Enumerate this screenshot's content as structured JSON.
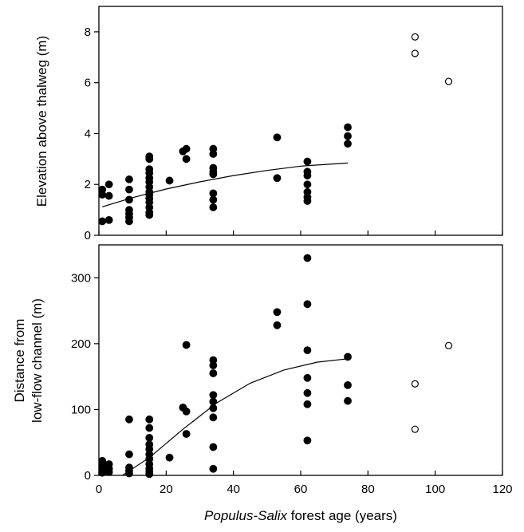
{
  "chart_data": [
    {
      "type": "scatter",
      "ylabel": "Elevation above thalweg (m)",
      "xlim": [
        0,
        120
      ],
      "ylim": [
        0,
        9
      ],
      "xticks": [
        0,
        20,
        40,
        60,
        80,
        100,
        120
      ],
      "yticks": [
        0,
        2,
        4,
        6,
        8
      ],
      "series": [
        {
          "marker": "filled-circle",
          "points": [
            [
              1,
              1.8
            ],
            [
              1,
              1.6
            ],
            [
              1,
              0.55
            ],
            [
              3,
              2.0
            ],
            [
              3,
              1.55
            ],
            [
              3,
              0.6
            ],
            [
              9,
              2.2
            ],
            [
              9,
              1.8
            ],
            [
              9,
              1.4
            ],
            [
              9,
              1.0
            ],
            [
              9,
              0.85
            ],
            [
              9,
              0.7
            ],
            [
              9,
              0.55
            ],
            [
              15,
              3.1
            ],
            [
              15,
              3.0
            ],
            [
              15,
              2.6
            ],
            [
              15,
              2.45
            ],
            [
              15,
              2.25
            ],
            [
              15,
              2.1
            ],
            [
              15,
              1.9
            ],
            [
              15,
              1.7
            ],
            [
              15,
              1.6
            ],
            [
              15,
              1.45
            ],
            [
              15,
              1.3
            ],
            [
              15,
              1.1
            ],
            [
              15,
              0.9
            ],
            [
              15,
              0.8
            ],
            [
              21,
              2.15
            ],
            [
              25,
              3.3
            ],
            [
              26,
              3.4
            ],
            [
              26,
              3.0
            ],
            [
              34,
              3.4
            ],
            [
              34,
              3.2
            ],
            [
              34,
              2.65
            ],
            [
              34,
              2.5
            ],
            [
              34,
              2.4
            ],
            [
              34,
              1.65
            ],
            [
              34,
              1.4
            ],
            [
              34,
              1.1
            ],
            [
              53,
              3.85
            ],
            [
              53,
              2.25
            ],
            [
              62,
              2.9
            ],
            [
              62,
              2.5
            ],
            [
              62,
              2.35
            ],
            [
              62,
              2.0
            ],
            [
              62,
              1.7
            ],
            [
              62,
              1.5
            ],
            [
              62,
              1.35
            ],
            [
              74,
              4.25
            ],
            [
              74,
              3.9
            ],
            [
              74,
              3.6
            ]
          ]
        },
        {
          "marker": "open-circle",
          "points": [
            [
              94,
              7.8
            ],
            [
              94,
              7.15
            ],
            [
              104,
              6.05
            ]
          ]
        }
      ],
      "fit_curve": {
        "points": [
          [
            1,
            1.12
          ],
          [
            10,
            1.48
          ],
          [
            20,
            1.82
          ],
          [
            30,
            2.1
          ],
          [
            40,
            2.35
          ],
          [
            50,
            2.55
          ],
          [
            60,
            2.72
          ],
          [
            74,
            2.84
          ]
        ]
      }
    },
    {
      "type": "scatter",
      "xlabel_italic": "Populus-Salix",
      "xlabel_rest": " forest age (years)",
      "ylabel_line1": "Distance from",
      "ylabel_line2": "low-flow channel (m)",
      "xlim": [
        0,
        120
      ],
      "ylim": [
        0,
        350
      ],
      "xticks": [
        0,
        20,
        40,
        60,
        80,
        100,
        120
      ],
      "yticks": [
        0,
        100,
        200,
        300
      ],
      "series": [
        {
          "marker": "filled-circle",
          "points": [
            [
              1,
              22
            ],
            [
              1,
              17
            ],
            [
              1,
              12
            ],
            [
              1,
              8
            ],
            [
              1,
              4
            ],
            [
              3,
              17
            ],
            [
              3,
              10
            ],
            [
              3,
              5
            ],
            [
              9,
              85
            ],
            [
              9,
              32
            ],
            [
              9,
              12
            ],
            [
              9,
              7
            ],
            [
              9,
              3
            ],
            [
              15,
              85
            ],
            [
              15,
              72
            ],
            [
              15,
              57
            ],
            [
              15,
              47
            ],
            [
              15,
              40
            ],
            [
              15,
              32
            ],
            [
              15,
              25
            ],
            [
              15,
              17
            ],
            [
              15,
              10
            ],
            [
              15,
              5
            ],
            [
              15,
              2
            ],
            [
              21,
              27
            ],
            [
              25,
              103
            ],
            [
              26,
              198
            ],
            [
              26,
              97
            ],
            [
              26,
              63
            ],
            [
              34,
              175
            ],
            [
              34,
              167
            ],
            [
              34,
              155
            ],
            [
              34,
              122
            ],
            [
              34,
              112
            ],
            [
              34,
              102
            ],
            [
              34,
              88
            ],
            [
              34,
              43
            ],
            [
              34,
              10
            ],
            [
              53,
              248
            ],
            [
              53,
              228
            ],
            [
              62,
              330
            ],
            [
              62,
              260
            ],
            [
              62,
              190
            ],
            [
              62,
              148
            ],
            [
              62,
              125
            ],
            [
              62,
              108
            ],
            [
              62,
              53
            ],
            [
              74,
              180
            ],
            [
              74,
              137
            ],
            [
              74,
              113
            ]
          ]
        },
        {
          "marker": "open-circle",
          "points": [
            [
              94,
              139
            ],
            [
              94,
              70
            ],
            [
              104,
              197
            ]
          ]
        }
      ],
      "fit_curve": {
        "points": [
          [
            7,
            0
          ],
          [
            15,
            27
          ],
          [
            25,
            70
          ],
          [
            35,
            110
          ],
          [
            45,
            140
          ],
          [
            55,
            160
          ],
          [
            65,
            172
          ],
          [
            74,
            177
          ]
        ]
      }
    }
  ]
}
